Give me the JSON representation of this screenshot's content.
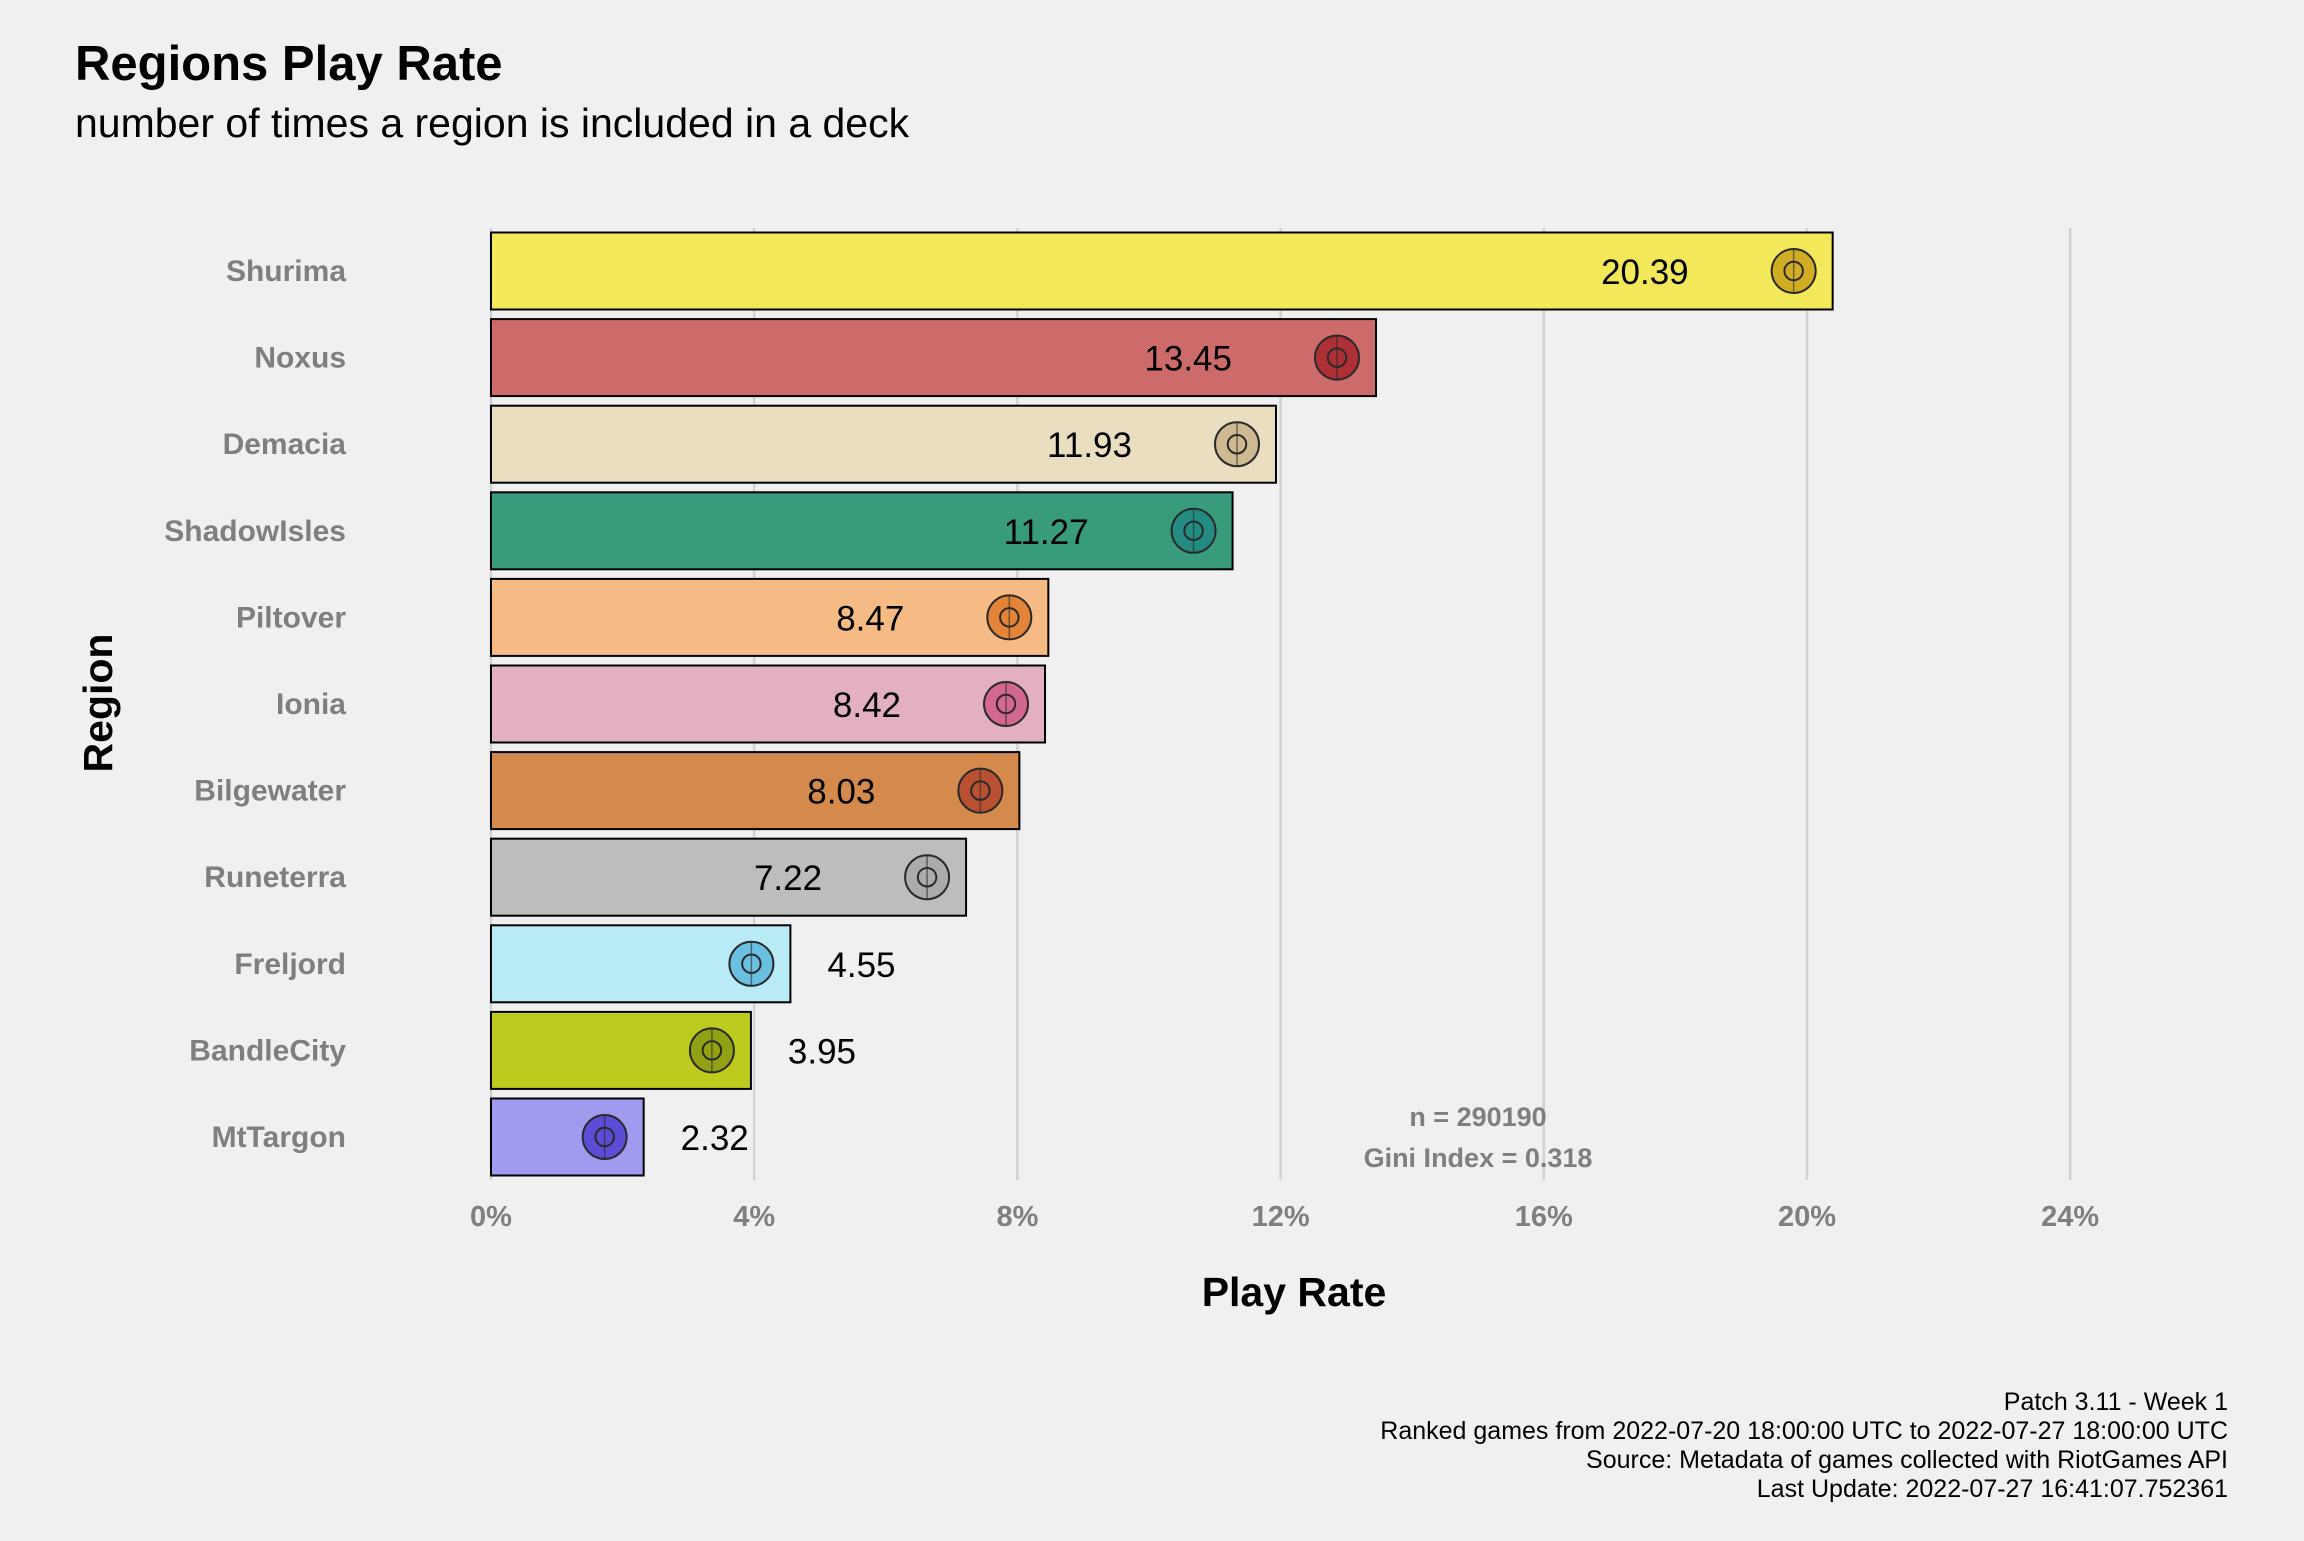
{
  "chart_data": {
    "type": "bar",
    "orientation": "horizontal",
    "title": "Regions Play Rate",
    "subtitle": "number of times a region is included in a deck",
    "xlabel": "Play Rate",
    "ylabel": "Region",
    "xlim": [
      0,
      26
    ],
    "x_ticks": [
      0,
      4,
      8,
      12,
      16,
      20,
      24
    ],
    "x_tick_labels": [
      "0%",
      "4%",
      "8%",
      "12%",
      "16%",
      "20%",
      "24%"
    ],
    "grid": "vertical major gridlines",
    "legend": "none",
    "categories": [
      "Shurima",
      "Noxus",
      "Demacia",
      "ShadowIsles",
      "Piltover",
      "Ionia",
      "Bilgewater",
      "Runeterra",
      "Freljord",
      "BandleCity",
      "MtTargon"
    ],
    "values": [
      20.39,
      13.45,
      11.93,
      11.27,
      8.47,
      8.42,
      8.03,
      7.22,
      4.55,
      3.95,
      2.32
    ],
    "value_labels": [
      "20.39",
      "13.45",
      "11.93",
      "11.27",
      "8.47",
      "8.42",
      "8.03",
      "7.22",
      "4.55",
      "3.95",
      "2.32"
    ],
    "colors": [
      "#f3e85a",
      "#cd6b6b",
      "#e9dfc0",
      "#389b7c",
      "#f6bb84",
      "#e2b0c1",
      "#d48a4d",
      "#bdbdbd",
      "#b9ebf7",
      "#bccb1d",
      "#9f9cf0"
    ],
    "icon_colors": [
      "#c9a21a",
      "#a8242b",
      "#c9b389",
      "#1f8a85",
      "#e07a2a",
      "#d05a86",
      "#b5452e",
      "#a8a8a8",
      "#5ab8dc",
      "#8a9a12",
      "#4f3fd0"
    ],
    "icons": [
      "shurima-icon",
      "noxus-icon",
      "demacia-icon",
      "shadowisles-icon",
      "piltover-icon",
      "ionia-icon",
      "bilgewater-icon",
      "runeterra-icon",
      "freljord-icon",
      "bandlecity-icon",
      "mttargon-icon"
    ],
    "annotation": [
      "n = 290190",
      "Gini Index = 0.318"
    ],
    "caption": [
      "Patch 3.11 - Week 1",
      "Ranked games from 2022-07-20 18:00:00 UTC to 2022-07-27 18:00:00 UTC",
      "Source: Metadata of games collected with RiotGames API",
      "Last Update: 2022-07-27 16:41:07.752361"
    ]
  }
}
